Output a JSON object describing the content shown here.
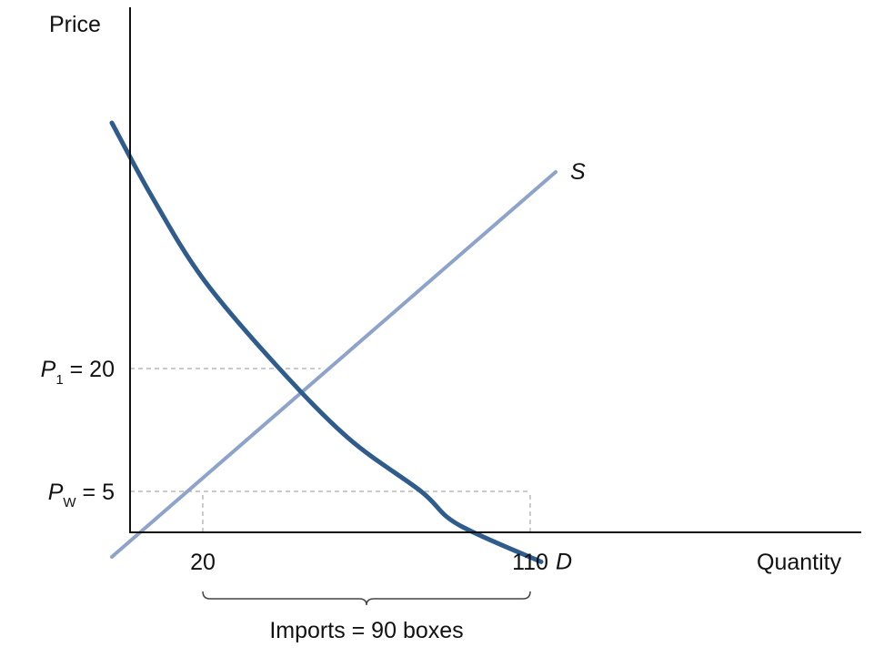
{
  "chart_data": {
    "type": "line",
    "ylabel": "Price",
    "xlabel": "Quantity",
    "x_ticks": [
      {
        "value": 20,
        "label": "20"
      },
      {
        "value": 110,
        "label": "110"
      }
    ],
    "y_ticks": [
      {
        "value": 20,
        "main": "P",
        "sub": "1",
        "rest": " = 20"
      },
      {
        "value": 5,
        "main": "P",
        "sub": "W",
        "rest": " = 5"
      }
    ],
    "series": [
      {
        "name": "S",
        "color": "#8ea3c9",
        "points": [
          [
            -5,
            -3
          ],
          [
            117,
            44
          ]
        ]
      },
      {
        "name": "D",
        "color": "#2f5c8c",
        "points": [
          [
            -5,
            50
          ],
          [
            6,
            41
          ],
          [
            20,
            31
          ],
          [
            40,
            20.5
          ],
          [
            60,
            11.5
          ],
          [
            80,
            5
          ],
          [
            90,
            1
          ],
          [
            113,
            -3.6
          ]
        ]
      }
    ],
    "guides": [
      {
        "from": [
          0,
          20
        ],
        "to": [
          52.4,
          20
        ]
      },
      {
        "from": [
          0,
          5
        ],
        "to": [
          110,
          5
        ]
      },
      {
        "from": [
          20,
          0
        ],
        "to": [
          20,
          5
        ]
      },
      {
        "from": [
          110,
          0
        ],
        "to": [
          110,
          5
        ]
      }
    ],
    "bracket": {
      "from": 20,
      "to": 110,
      "label": "Imports = 90 boxes"
    },
    "grid": false
  }
}
